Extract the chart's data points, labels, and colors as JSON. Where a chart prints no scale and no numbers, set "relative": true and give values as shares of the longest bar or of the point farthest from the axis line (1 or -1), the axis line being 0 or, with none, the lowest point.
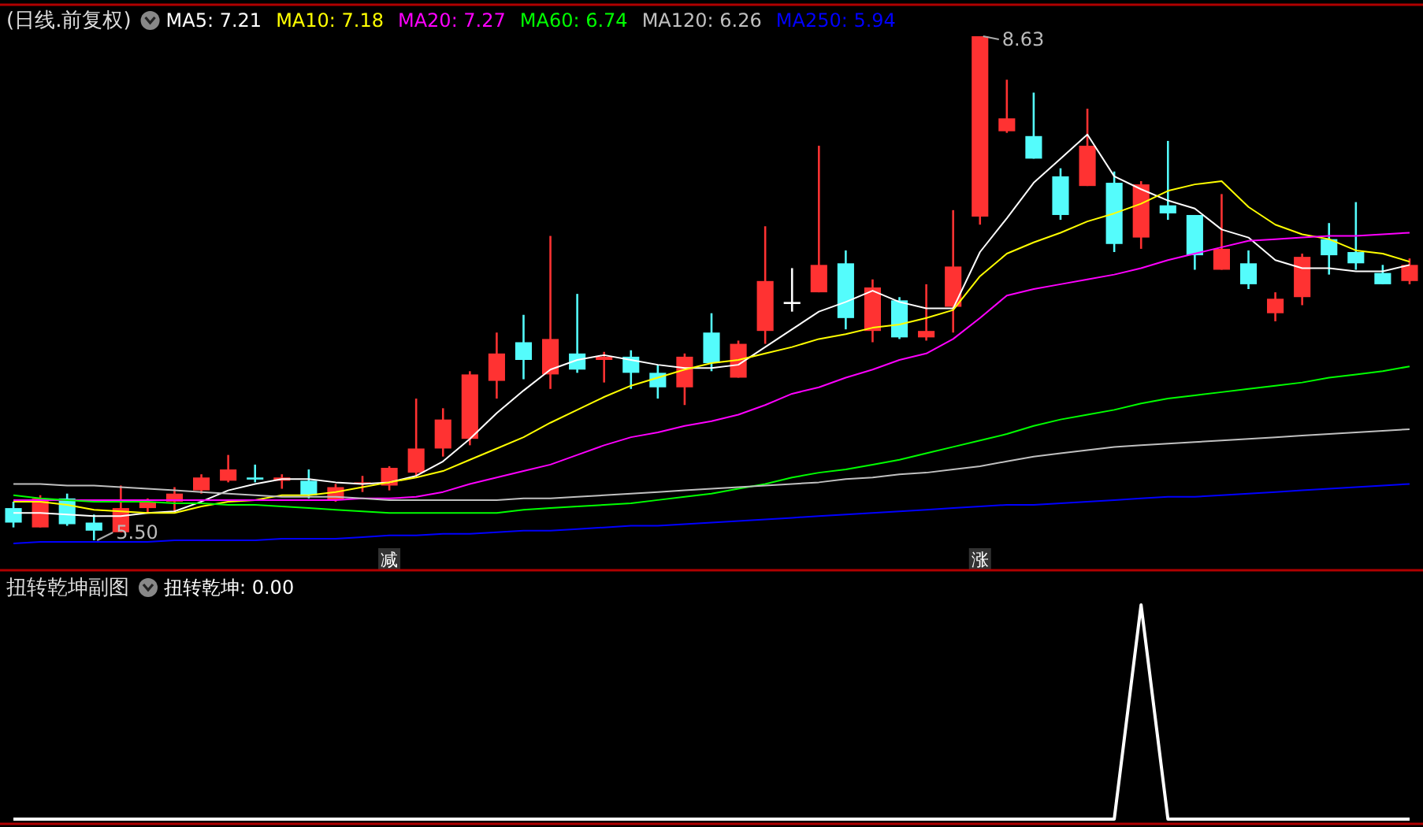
{
  "chart_data": [
    {
      "type": "candlestick",
      "title": "(日线.前复权)",
      "legend": "top left",
      "categories": [
        null,
        null,
        null,
        null,
        null,
        null,
        null,
        null,
        null,
        null,
        null,
        null,
        null,
        null,
        null,
        null,
        null,
        null,
        null,
        null,
        null,
        null,
        null,
        null,
        null,
        null,
        null,
        null,
        null,
        null,
        null,
        null,
        null,
        null,
        null,
        null,
        null,
        null,
        null,
        null,
        null,
        null,
        null,
        null,
        null,
        null,
        null,
        null,
        null,
        null,
        null,
        null,
        null
      ],
      "ohlc": [
        [
          5.7,
          5.74,
          5.58,
          5.61
        ],
        [
          5.58,
          5.78,
          5.58,
          5.76
        ],
        [
          5.76,
          5.79,
          5.59,
          5.6
        ],
        [
          5.61,
          5.66,
          5.5,
          5.56
        ],
        [
          5.55,
          5.84,
          5.55,
          5.7
        ],
        [
          5.7,
          5.76,
          5.67,
          5.74
        ],
        [
          5.74,
          5.83,
          5.68,
          5.79
        ],
        [
          5.81,
          5.91,
          5.79,
          5.89
        ],
        [
          5.87,
          6.03,
          5.86,
          5.94
        ],
        [
          5.89,
          5.97,
          5.86,
          5.88
        ],
        [
          5.87,
          5.91,
          5.82,
          5.89
        ],
        [
          5.87,
          5.94,
          5.76,
          5.78
        ],
        [
          5.75,
          5.85,
          5.74,
          5.83
        ],
        [
          5.85,
          5.9,
          5.8,
          5.86
        ],
        [
          5.84,
          5.96,
          5.81,
          5.95
        ],
        [
          5.92,
          6.38,
          5.9,
          6.07
        ],
        [
          6.07,
          6.32,
          6.02,
          6.25
        ],
        [
          6.13,
          6.55,
          6.09,
          6.53
        ],
        [
          6.49,
          6.79,
          6.38,
          6.66
        ],
        [
          6.73,
          6.9,
          6.5,
          6.62
        ],
        [
          6.53,
          7.39,
          6.44,
          6.75
        ],
        [
          6.66,
          7.03,
          6.54,
          6.56
        ],
        [
          6.62,
          6.67,
          6.48,
          6.64
        ],
        [
          6.64,
          6.68,
          6.44,
          6.54
        ],
        [
          6.54,
          6.59,
          6.38,
          6.45
        ],
        [
          6.45,
          6.66,
          6.34,
          6.64
        ],
        [
          6.79,
          6.91,
          6.55,
          6.6
        ],
        [
          6.51,
          6.74,
          6.51,
          6.72
        ],
        [
          6.8,
          7.45,
          6.72,
          7.11
        ],
        [
          6.98,
          7.19,
          6.92,
          6.98
        ],
        [
          7.04,
          7.95,
          7.04,
          7.21
        ],
        [
          7.22,
          7.3,
          6.81,
          6.88
        ],
        [
          6.8,
          7.12,
          6.73,
          7.07
        ],
        [
          6.99,
          7.01,
          6.75,
          6.76
        ],
        [
          6.76,
          7.09,
          6.74,
          6.8
        ],
        [
          6.95,
          7.55,
          6.79,
          7.2
        ],
        [
          7.51,
          8.63,
          7.46,
          8.63
        ],
        [
          8.04,
          8.36,
          8.03,
          8.12
        ],
        [
          8.01,
          8.28,
          7.87,
          7.87
        ],
        [
          7.76,
          7.81,
          7.49,
          7.52
        ],
        [
          7.7,
          8.18,
          7.7,
          7.95
        ],
        [
          7.72,
          7.79,
          7.29,
          7.34
        ],
        [
          7.38,
          7.73,
          7.31,
          7.71
        ],
        [
          7.58,
          7.98,
          7.49,
          7.53
        ],
        [
          7.52,
          7.52,
          7.18,
          7.27
        ],
        [
          7.18,
          7.65,
          7.18,
          7.31
        ],
        [
          7.22,
          7.3,
          7.06,
          7.09
        ],
        [
          6.91,
          7.04,
          6.86,
          7.0
        ],
        [
          7.01,
          7.28,
          6.96,
          7.26
        ],
        [
          7.37,
          7.47,
          7.15,
          7.27
        ],
        [
          7.29,
          7.6,
          7.18,
          7.22
        ],
        [
          7.16,
          7.21,
          7.09,
          7.09
        ],
        [
          7.11,
          7.25,
          7.09,
          7.21
        ]
      ],
      "colors": [
        "#54fcfc",
        "#ff3232",
        "#54fcfc",
        "#54fcfc",
        "#ff3232",
        "#ff3232",
        "#ff3232",
        "#ff3232",
        "#ff3232",
        "#54fcfc",
        "#ff3232",
        "#54fcfc",
        "#ff3232",
        "#ff3232",
        "#ff3232",
        "#ff3232",
        "#ff3232",
        "#ff3232",
        "#ff3232",
        "#54fcfc",
        "#ff3232",
        "#54fcfc",
        "#ff3232",
        "#54fcfc",
        "#54fcfc",
        "#ff3232",
        "#54fcfc",
        "#ff3232",
        "#ff3232",
        "#ffffff",
        "#ff3232",
        "#54fcfc",
        "#ff3232",
        "#54fcfc",
        "#ff3232",
        "#ff3232",
        "#ff3232",
        "#ff3232",
        "#54fcfc",
        "#54fcfc",
        "#ff3232",
        "#54fcfc",
        "#ff3232",
        "#54fcfc",
        "#54fcfc",
        "#ff3232",
        "#54fcfc",
        "#ff3232",
        "#ff3232",
        "#54fcfc",
        "#54fcfc",
        "#54fcfc",
        "#ff3232"
      ],
      "value_labels": [
        null,
        null,
        null,
        null,
        null,
        null,
        null,
        null,
        null,
        null,
        null,
        null,
        null,
        null,
        "减",
        null,
        null,
        null,
        null,
        null,
        null,
        null,
        null,
        null,
        null,
        null,
        null,
        null,
        null,
        null,
        null,
        null,
        null,
        null,
        null,
        null,
        "涨",
        null,
        null,
        null,
        null,
        null,
        null,
        null,
        null,
        null,
        null,
        null,
        null,
        null,
        null,
        null,
        null
      ],
      "annotations": [
        "8.63",
        "5.50"
      ],
      "series": [
        {
          "name": "MA5: 7.21",
          "type": "line",
          "color": "#ffffff",
          "values": [
            5.67,
            5.67,
            5.66,
            5.65,
            5.65,
            5.67,
            5.68,
            5.74,
            5.81,
            5.85,
            5.88,
            5.88,
            5.86,
            5.85,
            5.86,
            5.9,
            5.99,
            6.13,
            6.29,
            6.43,
            6.56,
            6.62,
            6.65,
            6.62,
            6.59,
            6.57,
            6.57,
            6.59,
            6.7,
            6.81,
            6.92,
            6.98,
            7.05,
            6.98,
            6.94,
            6.94,
            7.29,
            7.5,
            7.72,
            7.87,
            8.02,
            7.76,
            7.68,
            7.61,
            7.56,
            7.43,
            7.38,
            7.24,
            7.19,
            7.19,
            7.17,
            7.17,
            7.21
          ]
        },
        {
          "name": "MA10: 7.18",
          "type": "line",
          "color": "#ffff00",
          "values": [
            5.74,
            5.74,
            5.72,
            5.69,
            5.68,
            5.67,
            5.67,
            5.71,
            5.74,
            5.75,
            5.78,
            5.78,
            5.8,
            5.83,
            5.86,
            5.89,
            5.93,
            6.0,
            6.07,
            6.14,
            6.23,
            6.31,
            6.39,
            6.46,
            6.51,
            6.56,
            6.6,
            6.62,
            6.66,
            6.7,
            6.75,
            6.78,
            6.82,
            6.84,
            6.88,
            6.93,
            7.14,
            7.28,
            7.35,
            7.41,
            7.48,
            7.53,
            7.59,
            7.67,
            7.71,
            7.73,
            7.57,
            7.46,
            7.4,
            7.37,
            7.3,
            7.28,
            7.23
          ]
        },
        {
          "name": "MA20: 7.27",
          "type": "line",
          "color": "#ff00ff",
          "values": [
            5.75,
            5.75,
            5.75,
            5.75,
            5.75,
            5.75,
            5.75,
            5.75,
            5.75,
            5.75,
            5.75,
            5.75,
            5.75,
            5.76,
            5.76,
            5.77,
            5.8,
            5.85,
            5.89,
            5.93,
            5.97,
            6.03,
            6.09,
            6.14,
            6.17,
            6.21,
            6.24,
            6.28,
            6.34,
            6.41,
            6.45,
            6.51,
            6.56,
            6.62,
            6.66,
            6.75,
            6.88,
            7.02,
            7.06,
            7.09,
            7.12,
            7.15,
            7.19,
            7.24,
            7.28,
            7.32,
            7.36,
            7.37,
            7.38,
            7.39,
            7.39,
            7.4,
            7.41
          ]
        },
        {
          "name": "MA60: 6.74",
          "type": "line",
          "color": "#00ff00",
          "values": [
            5.78,
            5.76,
            5.75,
            5.74,
            5.74,
            5.74,
            5.73,
            5.73,
            5.72,
            5.72,
            5.71,
            5.7,
            5.69,
            5.68,
            5.67,
            5.67,
            5.67,
            5.67,
            5.67,
            5.69,
            5.7,
            5.71,
            5.72,
            5.73,
            5.75,
            5.77,
            5.79,
            5.82,
            5.85,
            5.89,
            5.92,
            5.94,
            5.97,
            6.0,
            6.04,
            6.08,
            6.12,
            6.16,
            6.21,
            6.25,
            6.28,
            6.31,
            6.35,
            6.38,
            6.4,
            6.42,
            6.44,
            6.46,
            6.48,
            6.51,
            6.53,
            6.55,
            6.58
          ]
        },
        {
          "name": "MA120: 6.26",
          "type": "line",
          "color": "#c0c0c0",
          "values": [
            5.85,
            5.85,
            5.84,
            5.84,
            5.83,
            5.82,
            5.81,
            5.8,
            5.79,
            5.78,
            5.77,
            5.77,
            5.77,
            5.76,
            5.75,
            5.75,
            5.75,
            5.75,
            5.75,
            5.76,
            5.76,
            5.77,
            5.78,
            5.79,
            5.8,
            5.81,
            5.82,
            5.83,
            5.84,
            5.85,
            5.86,
            5.88,
            5.89,
            5.91,
            5.92,
            5.94,
            5.96,
            5.99,
            6.02,
            6.04,
            6.06,
            6.08,
            6.09,
            6.1,
            6.11,
            6.12,
            6.13,
            6.14,
            6.15,
            6.16,
            6.17,
            6.18,
            6.19
          ]
        },
        {
          "name": "MA250: 5.94",
          "type": "line",
          "color": "#0000ff",
          "values": [
            5.48,
            5.49,
            5.49,
            5.49,
            5.49,
            5.49,
            5.5,
            5.5,
            5.5,
            5.5,
            5.51,
            5.51,
            5.51,
            5.52,
            5.53,
            5.53,
            5.54,
            5.54,
            5.55,
            5.56,
            5.56,
            5.57,
            5.58,
            5.59,
            5.59,
            5.6,
            5.61,
            5.62,
            5.63,
            5.64,
            5.65,
            5.66,
            5.67,
            5.68,
            5.69,
            5.7,
            5.71,
            5.72,
            5.72,
            5.73,
            5.74,
            5.75,
            5.76,
            5.77,
            5.77,
            5.78,
            5.79,
            5.8,
            5.81,
            5.82,
            5.83,
            5.84,
            5.85
          ]
        }
      ]
    },
    {
      "type": "line",
      "title": "扭转乾坤副图",
      "legend": "top left",
      "relative": true,
      "categories": [
        null,
        null,
        null,
        null,
        null,
        null,
        null,
        null,
        null,
        null,
        null,
        null,
        null,
        null,
        null,
        null,
        null,
        null,
        null,
        null,
        null,
        null,
        null,
        null,
        null,
        null,
        null,
        null,
        null,
        null,
        null,
        null,
        null,
        null,
        null,
        null,
        null,
        null,
        null,
        null,
        null,
        null,
        null,
        null,
        null,
        null,
        null,
        null,
        null,
        null,
        null,
        null,
        null
      ],
      "series": [
        {
          "name": "扭转乾坤: 0.00",
          "color": "#ffffff",
          "values": [
            0,
            0,
            0,
            0,
            0,
            0,
            0,
            0,
            0,
            0,
            0,
            0,
            0,
            0,
            0,
            0,
            0,
            0,
            0,
            0,
            0,
            0,
            0,
            0,
            0,
            0,
            0,
            0,
            0,
            0,
            0,
            0,
            0,
            0,
            0,
            0,
            0,
            0,
            0,
            0,
            0,
            0,
            1,
            0,
            0,
            0,
            0,
            0,
            0,
            0,
            0,
            0,
            0
          ]
        }
      ]
    }
  ]
}
